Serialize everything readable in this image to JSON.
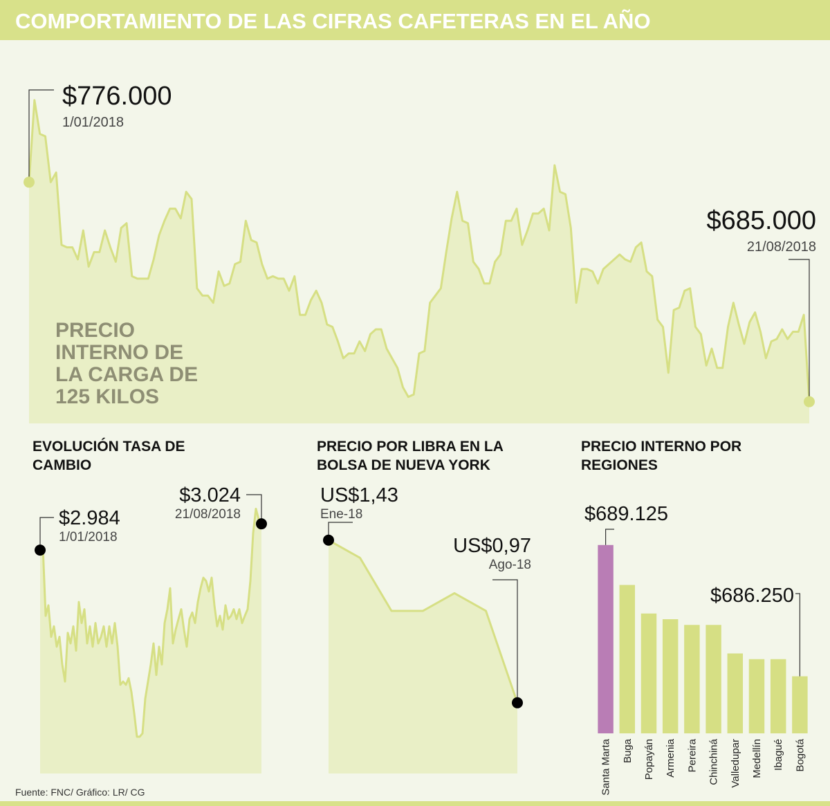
{
  "title": "COMPORTAMIENTO DE LAS CIFRAS CAFETERAS EN EL AÑO",
  "source": "Fuente: FNC/ Gráfico: LR/ CG",
  "chart_data": [
    {
      "type": "area",
      "title": "PRECIO INTERNO DE LA CARGA DE 125 KILOS",
      "color": "#d6df84",
      "fill": "#e9efc6",
      "marker_color": "#d6df84",
      "ylim": [
        676000,
        830000
      ],
      "categories": [
        "1/01/2018",
        null,
        null,
        null,
        null,
        null,
        null,
        null,
        null,
        null,
        null,
        null,
        null,
        null,
        null,
        null,
        null,
        null,
        null,
        null,
        null,
        null,
        null,
        null,
        null,
        null,
        null,
        null,
        null,
        null,
        null,
        null,
        null,
        null,
        null,
        null,
        null,
        null,
        null,
        null,
        null,
        null,
        null,
        null,
        null,
        null,
        null,
        null,
        null,
        null,
        null,
        null,
        null,
        null,
        null,
        null,
        null,
        null,
        null,
        null,
        null,
        null,
        null,
        null,
        null,
        null,
        null,
        null,
        null,
        null,
        null,
        null,
        null,
        null,
        null,
        null,
        null,
        null,
        null,
        null,
        null,
        null,
        null,
        null,
        null,
        null,
        null,
        null,
        null,
        null,
        null,
        null,
        null,
        null,
        null,
        null,
        null,
        null,
        null,
        null,
        null,
        null,
        null,
        null,
        null,
        null,
        null,
        null,
        null,
        null,
        null,
        null,
        null,
        null,
        null,
        null,
        null,
        null,
        null,
        null,
        null,
        null,
        null,
        null,
        null,
        null,
        null,
        null,
        null,
        null,
        null,
        null,
        null,
        null,
        null,
        null,
        null,
        null,
        null,
        null,
        null,
        null,
        null,
        null,
        "21/08/2018"
      ],
      "values": [
        776000,
        810000,
        796000,
        795000,
        776000,
        780000,
        750000,
        749000,
        749000,
        744000,
        756000,
        741000,
        747000,
        747000,
        756000,
        749000,
        743000,
        757000,
        759000,
        737000,
        736000,
        736000,
        736000,
        744000,
        754000,
        760000,
        765000,
        765000,
        761000,
        772000,
        769000,
        732000,
        729000,
        729000,
        726000,
        739000,
        733000,
        734000,
        742000,
        743000,
        760000,
        752000,
        751000,
        742000,
        736000,
        737000,
        736000,
        736000,
        731000,
        737000,
        721000,
        721000,
        727000,
        731000,
        726000,
        717000,
        716000,
        710000,
        703000,
        705000,
        705000,
        710000,
        706000,
        713000,
        715000,
        715000,
        707000,
        703000,
        699000,
        691000,
        687000,
        688000,
        705000,
        706000,
        726000,
        729000,
        732000,
        747000,
        761000,
        772000,
        760000,
        759000,
        743000,
        740000,
        734000,
        734000,
        743000,
        746000,
        760000,
        760000,
        765000,
        750000,
        756000,
        763000,
        763000,
        765000,
        756000,
        783000,
        772000,
        771000,
        757000,
        726000,
        740000,
        740000,
        739000,
        734000,
        740000,
        742000,
        744000,
        746000,
        744000,
        743000,
        749000,
        751000,
        739000,
        737000,
        719000,
        716000,
        697000,
        723000,
        724000,
        731000,
        732000,
        716000,
        713000,
        700000,
        707000,
        699000,
        699000,
        716000,
        726000,
        717000,
        709000,
        718000,
        722000,
        714000,
        703000,
        710000,
        711000,
        715000,
        711000,
        714000,
        714000,
        721000,
        685000
      ],
      "value_labels": [
        "$776.000",
        null,
        null,
        null,
        null,
        null,
        null,
        null,
        null,
        null,
        null,
        null,
        null,
        null,
        null,
        null,
        null,
        null,
        null,
        null,
        null,
        null,
        null,
        null,
        null,
        null,
        null,
        null,
        null,
        null,
        null,
        null,
        null,
        null,
        null,
        null,
        null,
        null,
        null,
        null,
        null,
        null,
        null,
        null,
        null,
        null,
        null,
        null,
        null,
        null,
        null,
        null,
        null,
        null,
        null,
        null,
        null,
        null,
        null,
        null,
        null,
        null,
        null,
        null,
        null,
        null,
        null,
        null,
        null,
        null,
        null,
        null,
        null,
        null,
        null,
        null,
        null,
        null,
        null,
        null,
        null,
        null,
        null,
        null,
        null,
        null,
        null,
        null,
        null,
        null,
        null,
        null,
        null,
        null,
        null,
        null,
        null,
        null,
        null,
        null,
        null,
        null,
        null,
        null,
        null,
        null,
        null,
        null,
        null,
        null,
        null,
        null,
        null,
        null,
        null,
        null,
        null,
        null,
        null,
        null,
        null,
        null,
        null,
        null,
        null,
        null,
        null,
        null,
        null,
        null,
        null,
        null,
        null,
        null,
        null,
        null,
        null,
        null,
        null,
        null,
        null,
        null,
        null,
        null,
        "$685.000"
      ]
    },
    {
      "type": "area",
      "title": "EVOLUCIÓN TASA DE CAMBIO",
      "color": "#d6df84",
      "fill": "#e9efc6",
      "marker_color": "#000000",
      "ylim": [
        2644,
        3100
      ],
      "categories": [
        "1/01/2018",
        null,
        null,
        null,
        null,
        null,
        null,
        null,
        null,
        null,
        null,
        null,
        null,
        null,
        null,
        null,
        null,
        null,
        null,
        null,
        null,
        null,
        null,
        null,
        null,
        null,
        null,
        null,
        null,
        null,
        null,
        null,
        null,
        null,
        null,
        null,
        null,
        null,
        null,
        null,
        null,
        null,
        null,
        null,
        null,
        null,
        null,
        null,
        null,
        null,
        null,
        null,
        null,
        null,
        null,
        null,
        null,
        null,
        null,
        null,
        null,
        null,
        null,
        null,
        null,
        null,
        null,
        null,
        null,
        null,
        null,
        null,
        null,
        null,
        null,
        null,
        null,
        null,
        null,
        null,
        "21/08/2018"
      ],
      "values": [
        2984,
        2989,
        2884,
        2900,
        2852,
        2868,
        2837,
        2852,
        2810,
        2784,
        2858,
        2842,
        2868,
        2831,
        2905,
        2873,
        2894,
        2842,
        2868,
        2837,
        2873,
        2842,
        2852,
        2868,
        2837,
        2868,
        2842,
        2873,
        2837,
        2779,
        2784,
        2779,
        2789,
        2768,
        2736,
        2700,
        2700,
        2705,
        2758,
        2784,
        2810,
        2842,
        2794,
        2837,
        2810,
        2873,
        2894,
        2926,
        2842,
        2863,
        2879,
        2894,
        2863,
        2837,
        2879,
        2889,
        2873,
        2905,
        2926,
        2942,
        2937,
        2921,
        2942,
        2900,
        2868,
        2884,
        2863,
        2900,
        2879,
        2884,
        2894,
        2879,
        2894,
        2873,
        2884,
        2894,
        2937,
        3010,
        3047,
        3031,
        3024
      ],
      "value_labels": [
        "$2.984",
        null,
        null,
        null,
        null,
        null,
        null,
        null,
        null,
        null,
        null,
        null,
        null,
        null,
        null,
        null,
        null,
        null,
        null,
        null,
        null,
        null,
        null,
        null,
        null,
        null,
        null,
        null,
        null,
        null,
        null,
        null,
        null,
        null,
        null,
        null,
        null,
        null,
        null,
        null,
        null,
        null,
        null,
        null,
        null,
        null,
        null,
        null,
        null,
        null,
        null,
        null,
        null,
        null,
        null,
        null,
        null,
        null,
        null,
        null,
        null,
        null,
        null,
        null,
        null,
        null,
        null,
        null,
        null,
        null,
        null,
        null,
        null,
        null,
        null,
        null,
        null,
        null,
        null,
        null,
        "$3.024"
      ]
    },
    {
      "type": "area",
      "title": "PRECIO POR LIBRA EN LA BOLSA DE NUEVA YORK",
      "color": "#d6df84",
      "fill": "#e9efc6",
      "marker_color": "#000000",
      "ylim": [
        0.77,
        1.5
      ],
      "categories": [
        "Ene-18",
        null,
        null,
        null,
        null,
        null,
        "Ago-18"
      ],
      "values": [
        1.43,
        1.38,
        1.23,
        1.23,
        1.28,
        1.23,
        0.97
      ],
      "value_labels": [
        "US$1,43",
        null,
        null,
        null,
        null,
        null,
        "US$0,97"
      ]
    },
    {
      "type": "bar",
      "title": "PRECIO INTERNO POR REGIONES",
      "ylim": [
        685000,
        690000
      ],
      "categories": [
        "Santa Marta",
        "Buga",
        "Popayán",
        "Armenia",
        "Pereira",
        "Chinchiná",
        "Valledupar",
        "Medellín",
        "Ibagué",
        "Bogotá"
      ],
      "values": [
        689125,
        688250,
        687625,
        687500,
        687375,
        687375,
        686750,
        686625,
        686625,
        686250
      ],
      "value_labels": [
        "$689.125",
        null,
        null,
        null,
        null,
        null,
        null,
        null,
        null,
        "$686.250"
      ],
      "colors": [
        "#b97db5",
        "#d6df84",
        "#d6df84",
        "#d6df84",
        "#d6df84",
        "#d6df84",
        "#d6df84",
        "#d6df84",
        "#d6df84",
        "#d6df84"
      ]
    }
  ]
}
